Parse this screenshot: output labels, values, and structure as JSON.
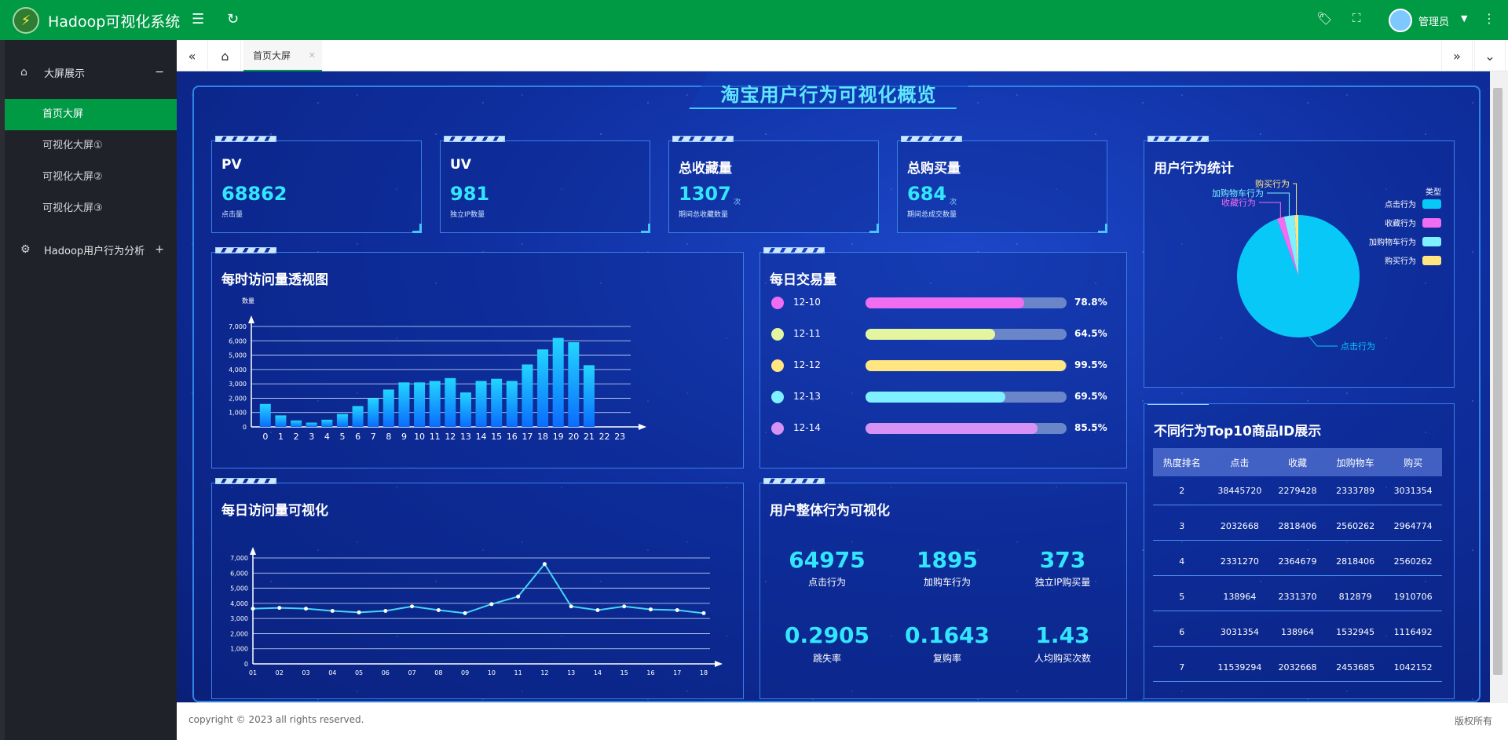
{
  "app": {
    "title": "Hadoop可视化系统",
    "user": "管理员"
  },
  "sidebar": {
    "groups": [
      {
        "label": "大屏展示",
        "toggle": "−"
      },
      {
        "label": "Hadoop用户行为分析",
        "toggle": "+"
      }
    ],
    "items": [
      {
        "label": "首页大屏"
      },
      {
        "label": "可视化大屏①"
      },
      {
        "label": "可视化大屏②"
      },
      {
        "label": "可视化大屏③"
      }
    ]
  },
  "tabs": {
    "active": "首页大屏"
  },
  "dashboard": {
    "title": "淘宝用户行为可视化概览",
    "kpis": [
      {
        "title": "PV",
        "value": "68862",
        "sub": "点击量",
        "unit": ""
      },
      {
        "title": "UV",
        "value": "981",
        "sub": "独立IP数量",
        "unit": ""
      },
      {
        "title": "总收藏量",
        "value": "1307",
        "sub": "期间总收藏数量",
        "unit": "次"
      },
      {
        "title": "总购买量",
        "value": "684",
        "sub": "期间总成交数量",
        "unit": "次"
      }
    ],
    "hourly": {
      "title": "每时访问量透视图"
    },
    "daily_trade": {
      "title": "每日交易量",
      "rows": [
        {
          "date": "12-10",
          "pct": "78.8%",
          "value": 78.8,
          "color": "#f06cf0"
        },
        {
          "date": "12-11",
          "pct": "64.5%",
          "value": 64.5,
          "color": "#e4f5a0"
        },
        {
          "date": "12-12",
          "pct": "99.5%",
          "value": 99.5,
          "color": "#ffe680"
        },
        {
          "date": "12-13",
          "pct": "69.5%",
          "value": 69.5,
          "color": "#7ff0ff"
        },
        {
          "date": "12-14",
          "pct": "85.5%",
          "value": 85.5,
          "color": "#d792f5"
        }
      ]
    },
    "behavior_stats": {
      "title": "用户行为统计",
      "legend_title": "类型",
      "legend": [
        {
          "label": "点击行为",
          "color": "#08c8f8"
        },
        {
          "label": "收藏行为",
          "color": "#f06cf0"
        },
        {
          "label": "加购物车行为",
          "color": "#7ff0ff"
        },
        {
          "label": "购买行为",
          "color": "#ffe680"
        }
      ],
      "callouts": [
        "购买行为",
        "加购物车行为",
        "收藏行为",
        "点击行为"
      ]
    },
    "daily_visits": {
      "title": "每日访问量可视化"
    },
    "overall": {
      "title": "用户整体行为可视化",
      "stats": [
        {
          "value": "64975",
          "label": "点击行为"
        },
        {
          "value": "1895",
          "label": "加购车行为"
        },
        {
          "value": "373",
          "label": "独立IP购买量"
        },
        {
          "value": "0.2905",
          "label": "跳失率"
        },
        {
          "value": "0.1643",
          "label": "复购率"
        },
        {
          "value": "1.43",
          "label": "人均购买次数"
        }
      ]
    },
    "top10": {
      "title": "不同行为Top10商品ID展示",
      "headers": [
        "热度排名",
        "点击",
        "收藏",
        "加购物车",
        "购买"
      ],
      "rows": [
        [
          "2",
          "38445720",
          "2279428",
          "2333789",
          "3031354"
        ],
        [
          "3",
          "2032668",
          "2818406",
          "2560262",
          "2964774"
        ],
        [
          "4",
          "2331270",
          "2364679",
          "2818406",
          "2560262"
        ],
        [
          "5",
          "138964",
          "2331370",
          "812879",
          "1910706"
        ],
        [
          "6",
          "3031354",
          "138964",
          "1532945",
          "1116492"
        ],
        [
          "7",
          "11539294",
          "2032668",
          "2453685",
          "1042152"
        ]
      ]
    }
  },
  "footer": {
    "copyright": "copyright © 2023 all rights reserved.",
    "rights": "版权所有"
  },
  "chart_data": [
    {
      "type": "bar",
      "title": "",
      "ylabel": "数量",
      "xlabel": "",
      "ylim": [
        0,
        7000
      ],
      "yticks": [
        "0",
        "1,000",
        "2,000",
        "3,000",
        "4,000",
        "5,000",
        "6,000",
        "7,000"
      ],
      "categories": [
        "0",
        "1",
        "2",
        "3",
        "4",
        "5",
        "6",
        "7",
        "8",
        "9",
        "10",
        "11",
        "12",
        "13",
        "14",
        "15",
        "16",
        "17",
        "18",
        "19",
        "20",
        "21",
        "22",
        "23"
      ],
      "values": [
        1600,
        800,
        450,
        300,
        500,
        900,
        1450,
        2000,
        2600,
        3100,
        3100,
        3200,
        3400,
        2400,
        3200,
        3350,
        3200,
        4350,
        5400,
        6200,
        5900,
        4300,
        0,
        0
      ]
    },
    {
      "type": "line",
      "title": "",
      "xlabel": "",
      "ylabel": "",
      "ylim": [
        0,
        7000
      ],
      "yticks": [
        "0",
        "1,000",
        "2,000",
        "3,000",
        "4,000",
        "5,000",
        "6,000",
        "7,000"
      ],
      "categories": [
        "01",
        "02",
        "03",
        "04",
        "05",
        "06",
        "07",
        "08",
        "09",
        "10",
        "11",
        "12",
        "13",
        "14",
        "15",
        "16",
        "17",
        "18"
      ],
      "values": [
        3650,
        3700,
        3650,
        3500,
        3400,
        3500,
        3800,
        3550,
        3350,
        3950,
        4450,
        6600,
        3800,
        3550,
        3800,
        3600,
        3550,
        3350
      ]
    },
    {
      "type": "pie",
      "title": "",
      "labels": [
        "点击行为",
        "收藏行为",
        "加购物车行为",
        "购买行为"
      ],
      "values": [
        64975,
        1307,
        1895,
        684
      ]
    }
  ]
}
